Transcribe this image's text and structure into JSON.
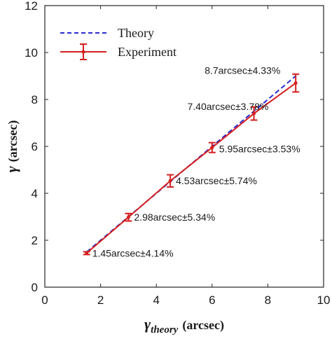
{
  "chart_data": {
    "type": "line",
    "xlabel": {
      "symbol": "γ",
      "subscript": "theory",
      "unit": "(arcsec)"
    },
    "ylabel": {
      "symbol": "γ",
      "unit": "(arcsec)"
    },
    "xlim": [
      0,
      10
    ],
    "ylim": [
      0,
      12
    ],
    "xticks": [
      "0",
      "2",
      "4",
      "6",
      "8",
      "10"
    ],
    "yticks": [
      "0",
      "2",
      "4",
      "6",
      "8",
      "10",
      "12"
    ],
    "grid": false,
    "legend_position": "top-left",
    "series": [
      {
        "name": "Theory",
        "style": "dashed",
        "color": "#2b2bd6",
        "x": [
          1.5,
          9.0
        ],
        "y": [
          1.5,
          9.0
        ]
      },
      {
        "name": "Experiment",
        "style": "solid-with-errorbars",
        "color": "#d42020",
        "x": [
          1.5,
          3.0,
          4.5,
          6.0,
          7.5,
          9.0
        ],
        "y": [
          1.45,
          2.98,
          4.53,
          5.95,
          7.4,
          8.7
        ],
        "error": [
          0.06,
          0.16,
          0.26,
          0.21,
          0.28,
          0.38
        ]
      }
    ],
    "annotations": [
      {
        "text": "1.45arcsec±4.14%",
        "x": 1.5,
        "y": 1.45
      },
      {
        "text": "2.98arcsec±5.34%",
        "x": 3.0,
        "y": 2.98
      },
      {
        "text": "4.53arcsec±5.74%",
        "x": 4.5,
        "y": 4.53
      },
      {
        "text": "5.95arcsec±3.53%",
        "x": 6.0,
        "y": 5.95
      },
      {
        "text": "7.40arcsec±3.78%",
        "x": 7.5,
        "y": 7.4
      },
      {
        "text": "8.7arcsec±4.33%",
        "x": 9.0,
        "y": 8.7
      }
    ]
  }
}
